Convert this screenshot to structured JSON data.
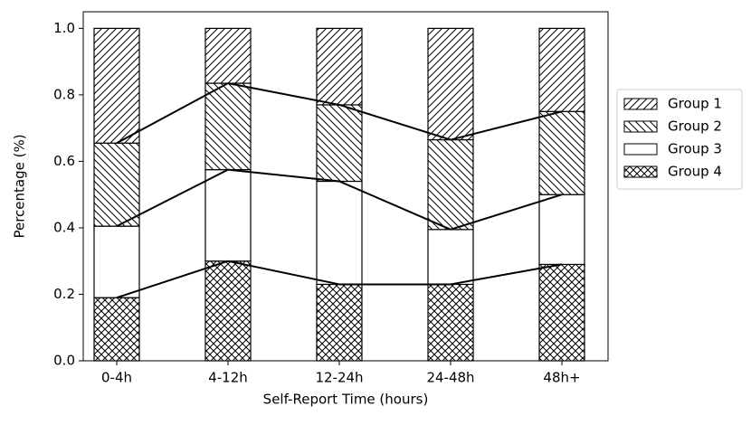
{
  "chart_data": {
    "type": "stacked-bar",
    "categories": [
      "0-4h",
      "4-12h",
      "12-24h",
      "24-48h",
      "48h+"
    ],
    "xlabel": "Self-Report Time (hours)",
    "ylabel": "Percentage (%)",
    "ylim": [
      0,
      1.05
    ],
    "yticks": [
      {
        "value": 0,
        "label": "0.0"
      },
      {
        "value": 0.2,
        "label": "0.2"
      },
      {
        "value": 0.4,
        "label": "0.4"
      },
      {
        "value": 0.6,
        "label": "0.6"
      },
      {
        "value": 0.8,
        "label": "0.8"
      },
      {
        "value": 1,
        "label": "1.0"
      }
    ],
    "legend": "outside-right",
    "connect_lines": true,
    "series": [
      {
        "name": "Group 4",
        "color": "#ffffff",
        "hatch": "x",
        "values": [
          0.19,
          0.3,
          0.23,
          0.23,
          0.29
        ]
      },
      {
        "name": "Group 3",
        "color": "#ffffff",
        "hatch": "",
        "values": [
          0.215,
          0.275,
          0.31,
          0.165,
          0.21
        ]
      },
      {
        "name": "Group 2",
        "color": "#ffffff",
        "hatch": "\\",
        "values": [
          0.25,
          0.26,
          0.23,
          0.27,
          0.25
        ]
      },
      {
        "name": "Group 1",
        "color": "#ffffff",
        "hatch": "/",
        "values": [
          0.345,
          0.165,
          0.23,
          0.335,
          0.25
        ]
      }
    ]
  }
}
